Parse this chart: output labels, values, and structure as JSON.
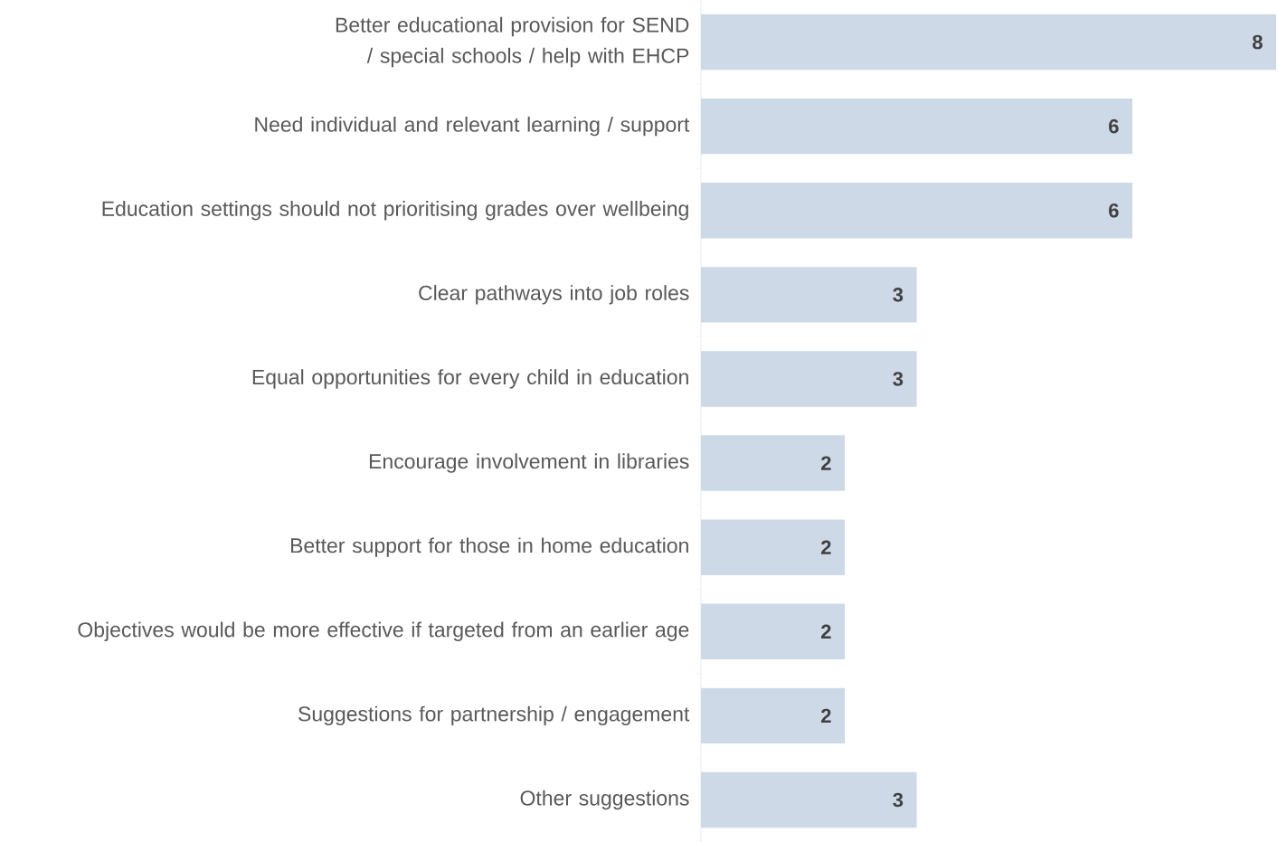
{
  "chart_data": {
    "type": "bar",
    "orientation": "horizontal",
    "categories": [
      "Better educational provision for SEND / special schools / help with EHCP",
      "Need individual and relevant learning / support",
      "Education settings should not prioritising grades over wellbeing",
      "Clear pathways into job roles",
      "Equal opportunities for every child in education",
      "Encourage involvement in libraries",
      "Better support for those in home education",
      "Objectives would be more effective if targeted from an earlier age",
      "Suggestions for partnership / engagement",
      "Other suggestions"
    ],
    "values": [
      8,
      6,
      6,
      3,
      3,
      2,
      2,
      2,
      2,
      3
    ],
    "color": "#cdd9e6",
    "data_labels": true
  }
}
